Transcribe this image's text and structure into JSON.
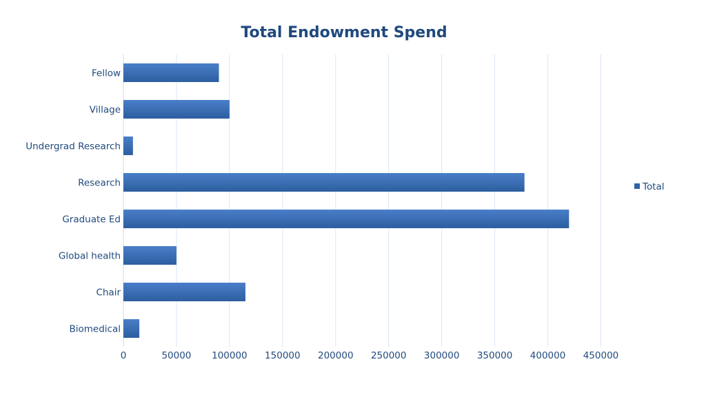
{
  "colors": {
    "title": "#1f497d",
    "label": "#1f497d",
    "bar_top": "#4a7ec9",
    "bar_bottom": "#2c5e9f",
    "grid": "#d9e6f3"
  },
  "chart_data": {
    "type": "bar",
    "orientation": "horizontal",
    "title": "Total Endowment Spend",
    "xlabel": "",
    "ylabel": "",
    "categories": [
      "Fellow",
      "Village",
      "Undergrad Research",
      "Research",
      "Graduate Ed",
      "Global health",
      "Chair",
      "Biomedical"
    ],
    "series": [
      {
        "name": "Total",
        "values": [
          90000,
          100000,
          9000,
          378000,
          420000,
          50000,
          115000,
          15000
        ]
      }
    ],
    "xlim": [
      0,
      450000
    ],
    "x_ticks": [
      "0",
      "50000",
      "100000",
      "150000",
      "200000",
      "250000",
      "300000",
      "350000",
      "400000",
      "450000"
    ],
    "grid": true,
    "legend": "right"
  }
}
